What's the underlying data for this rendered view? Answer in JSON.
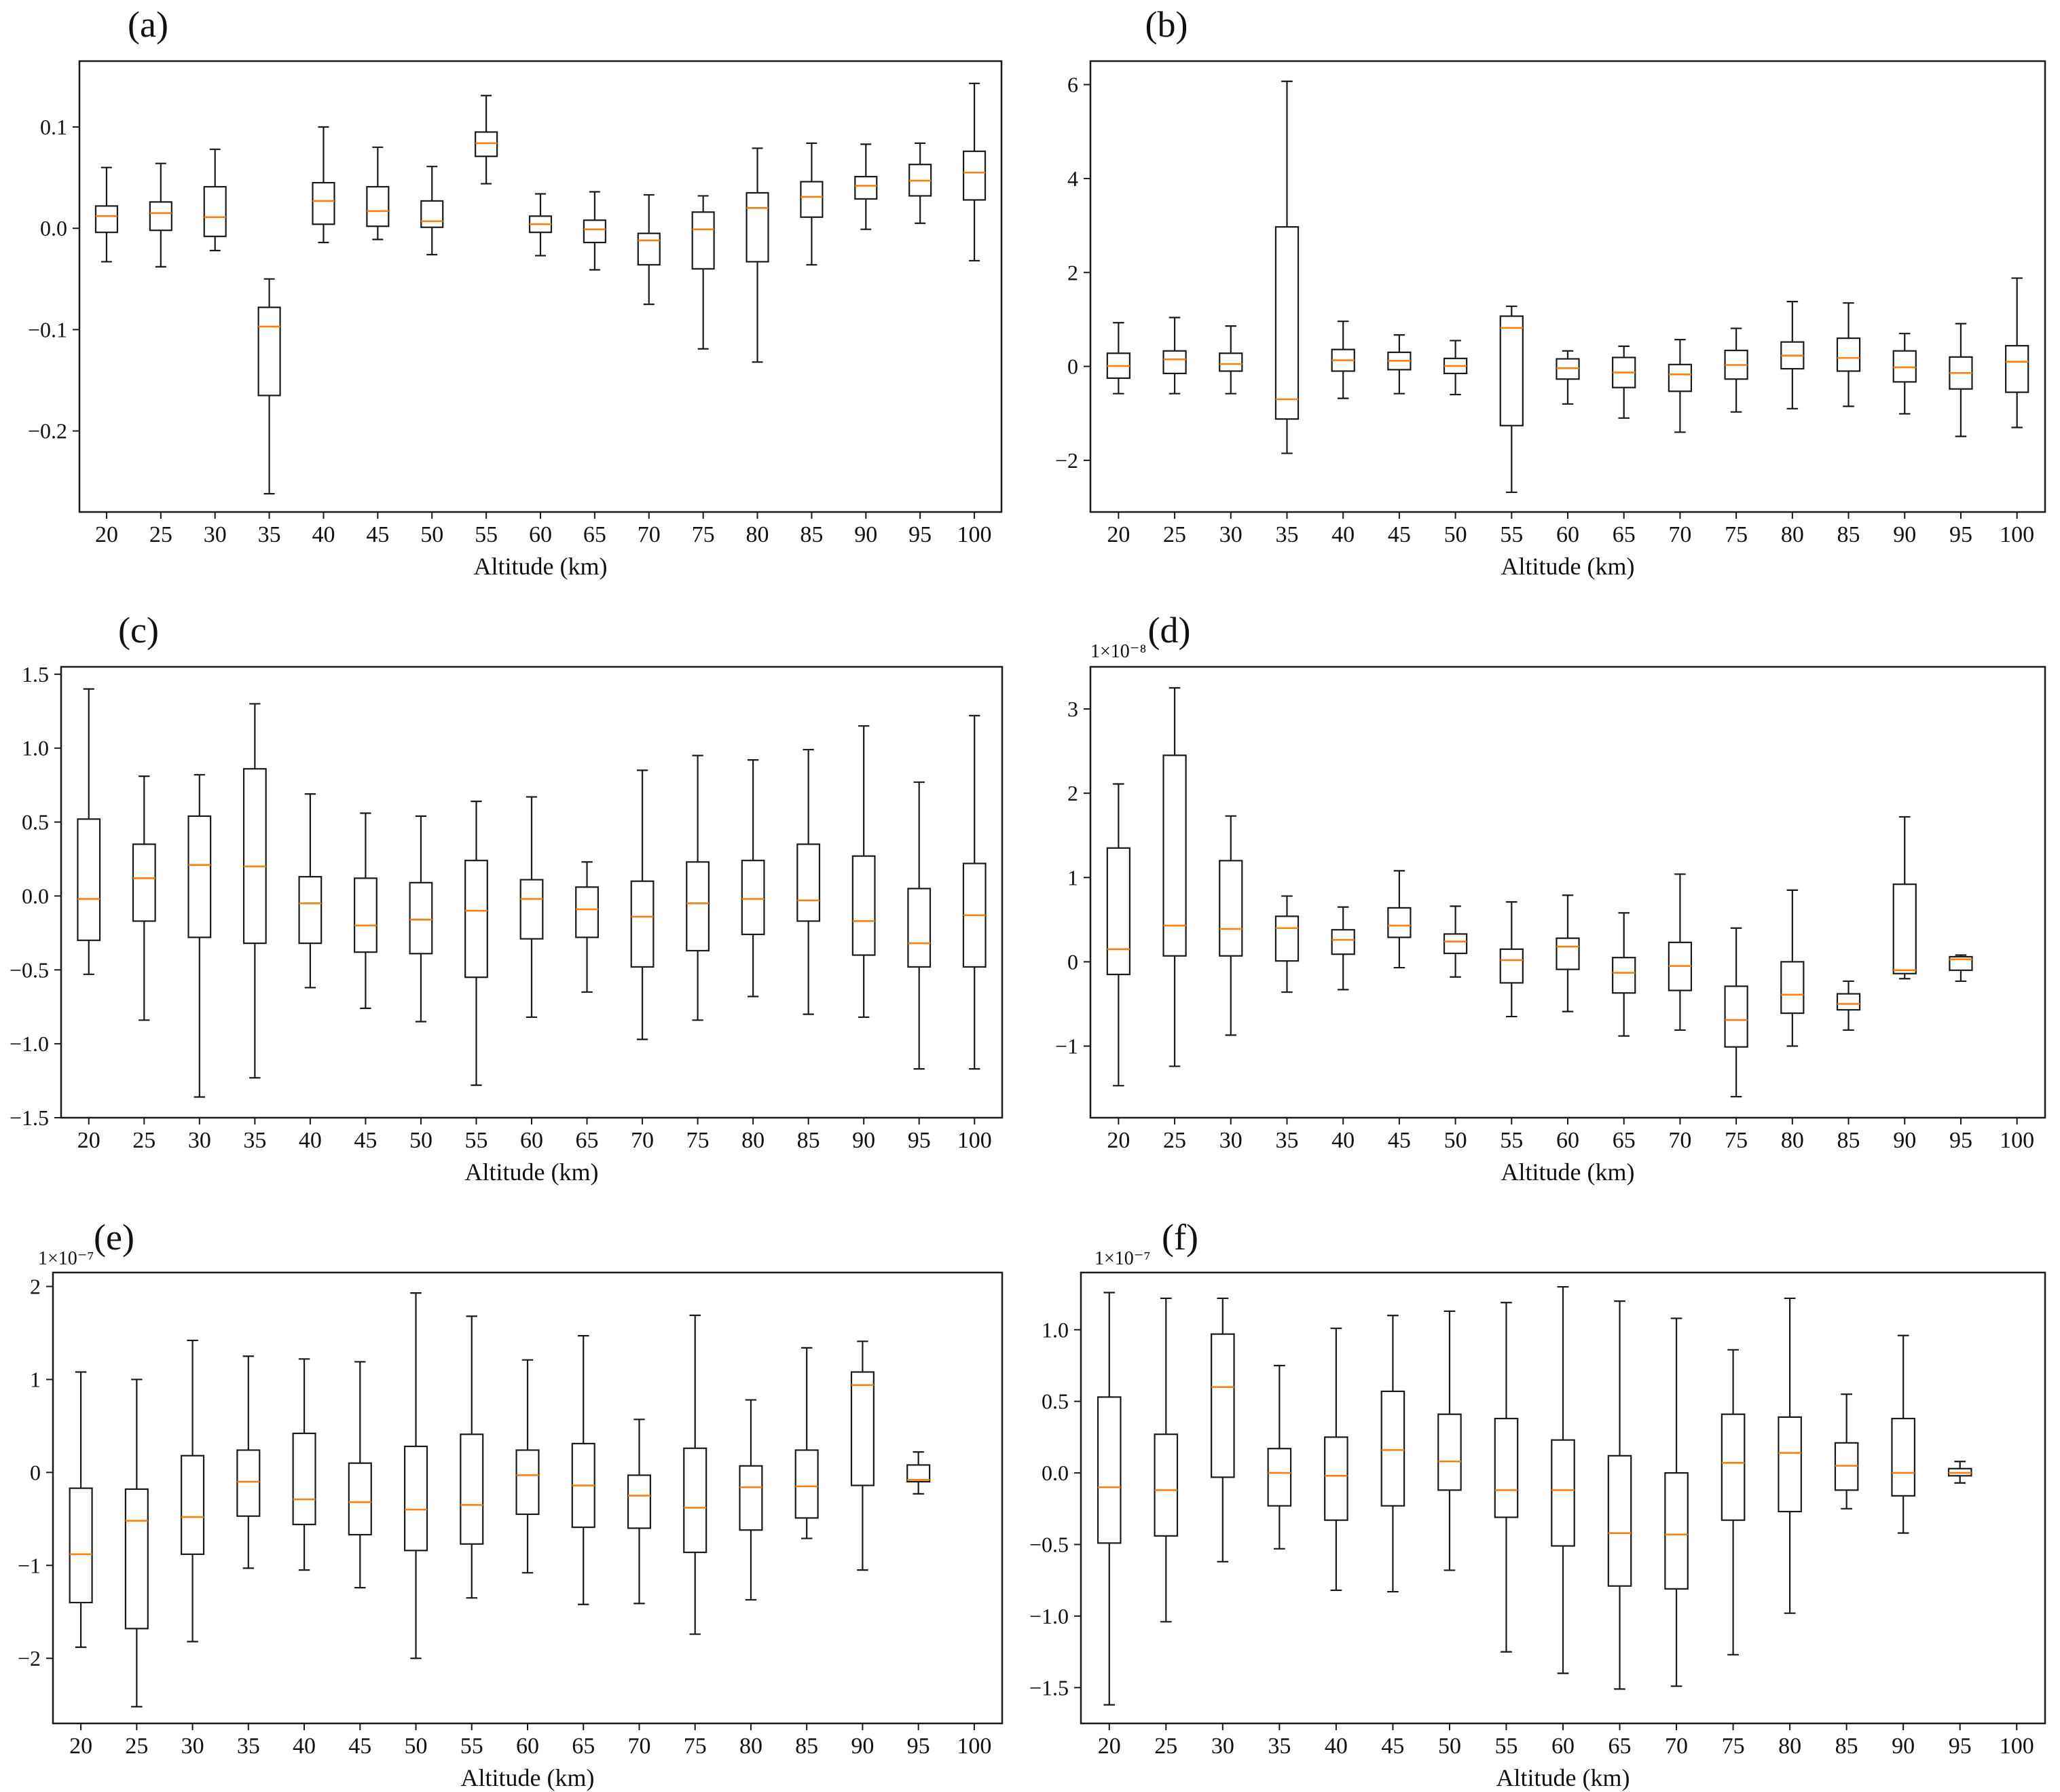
{
  "figure": {
    "colors": {
      "box": "#1a1a1a",
      "median": "#ff7f0e",
      "background": "#ffffff"
    }
  },
  "chart_data": [
    {
      "panel": "(a)",
      "type": "box",
      "xlabel": "Altitude (km)",
      "ylabel": "",
      "scale_label": "",
      "ylim": [
        -0.28,
        0.165
      ],
      "yticks": [
        -0.2,
        -0.1,
        0.0,
        0.1
      ],
      "ytick_labels": [
        "−0.2",
        "−0.1",
        "0.0",
        "0.1"
      ],
      "categories": [
        "20",
        "25",
        "30",
        "35",
        "40",
        "45",
        "50",
        "55",
        "60",
        "65",
        "70",
        "75",
        "80",
        "85",
        "90",
        "95",
        "100"
      ],
      "boxes": [
        {
          "min": -0.033,
          "q1": -0.004,
          "median": 0.012,
          "q3": 0.022,
          "max": 0.06
        },
        {
          "min": -0.038,
          "q1": -0.002,
          "median": 0.015,
          "q3": 0.026,
          "max": 0.064
        },
        {
          "min": -0.022,
          "q1": -0.008,
          "median": 0.011,
          "q3": 0.041,
          "max": 0.078
        },
        {
          "min": -0.262,
          "q1": -0.165,
          "median": -0.097,
          "q3": -0.078,
          "max": -0.05
        },
        {
          "min": -0.014,
          "q1": 0.004,
          "median": 0.027,
          "q3": 0.045,
          "max": 0.1
        },
        {
          "min": -0.011,
          "q1": 0.002,
          "median": 0.017,
          "q3": 0.041,
          "max": 0.08
        },
        {
          "min": -0.026,
          "q1": 0.001,
          "median": 0.007,
          "q3": 0.027,
          "max": 0.061
        },
        {
          "min": 0.044,
          "q1": 0.071,
          "median": 0.084,
          "q3": 0.095,
          "max": 0.131
        },
        {
          "min": -0.027,
          "q1": -0.004,
          "median": 0.004,
          "q3": 0.012,
          "max": 0.034
        },
        {
          "min": -0.041,
          "q1": -0.014,
          "median": -0.001,
          "q3": 0.008,
          "max": 0.036
        },
        {
          "min": -0.075,
          "q1": -0.036,
          "median": -0.012,
          "q3": -0.005,
          "max": 0.033
        },
        {
          "min": -0.119,
          "q1": -0.04,
          "median": -0.001,
          "q3": 0.016,
          "max": 0.032
        },
        {
          "min": -0.132,
          "q1": -0.033,
          "median": 0.02,
          "q3": 0.035,
          "max": 0.079
        },
        {
          "min": -0.036,
          "q1": 0.011,
          "median": 0.031,
          "q3": 0.046,
          "max": 0.084
        },
        {
          "min": -0.001,
          "q1": 0.029,
          "median": 0.042,
          "q3": 0.051,
          "max": 0.083
        },
        {
          "min": 0.005,
          "q1": 0.032,
          "median": 0.047,
          "q3": 0.063,
          "max": 0.084
        },
        {
          "min": -0.032,
          "q1": 0.028,
          "median": 0.055,
          "q3": 0.076,
          "max": 0.143
        }
      ]
    },
    {
      "panel": "(b)",
      "type": "box",
      "xlabel": "Altitude (km)",
      "ylabel": "",
      "scale_label": "",
      "ylim": [
        -3.1,
        6.5
      ],
      "yticks": [
        -2,
        0,
        2,
        4,
        6
      ],
      "ytick_labels": [
        "−2",
        "0",
        "2",
        "4",
        "6"
      ],
      "categories": [
        "20",
        "25",
        "30",
        "35",
        "40",
        "45",
        "50",
        "55",
        "60",
        "65",
        "70",
        "75",
        "80",
        "85",
        "90",
        "95",
        "100"
      ],
      "boxes": [
        {
          "min": -0.58,
          "q1": -0.25,
          "median": 0.01,
          "q3": 0.28,
          "max": 0.93
        },
        {
          "min": -0.58,
          "q1": -0.15,
          "median": 0.15,
          "q3": 0.33,
          "max": 1.04
        },
        {
          "min": -0.58,
          "q1": -0.1,
          "median": 0.05,
          "q3": 0.28,
          "max": 0.86
        },
        {
          "min": -1.85,
          "q1": -1.12,
          "median": -0.7,
          "q3": 2.97,
          "max": 6.07
        },
        {
          "min": -0.68,
          "q1": -0.1,
          "median": 0.13,
          "q3": 0.36,
          "max": 0.96
        },
        {
          "min": -0.58,
          "q1": -0.07,
          "median": 0.12,
          "q3": 0.3,
          "max": 0.67
        },
        {
          "min": -0.6,
          "q1": -0.15,
          "median": 0.01,
          "q3": 0.17,
          "max": 0.55
        },
        {
          "min": -2.68,
          "q1": -1.26,
          "median": 0.82,
          "q3": 1.07,
          "max": 1.28
        },
        {
          "min": -0.8,
          "q1": -0.27,
          "median": -0.04,
          "q3": 0.16,
          "max": 0.33
        },
        {
          "min": -1.1,
          "q1": -0.45,
          "median": -0.13,
          "q3": 0.19,
          "max": 0.43
        },
        {
          "min": -1.4,
          "q1": -0.53,
          "median": -0.17,
          "q3": 0.04,
          "max": 0.57
        },
        {
          "min": -0.97,
          "q1": -0.27,
          "median": 0.03,
          "q3": 0.34,
          "max": 0.81
        },
        {
          "min": -0.9,
          "q1": -0.05,
          "median": 0.23,
          "q3": 0.52,
          "max": 1.38
        },
        {
          "min": -0.85,
          "q1": -0.1,
          "median": 0.18,
          "q3": 0.6,
          "max": 1.35
        },
        {
          "min": -1.01,
          "q1": -0.33,
          "median": -0.02,
          "q3": 0.33,
          "max": 0.7
        },
        {
          "min": -1.49,
          "q1": -0.48,
          "median": -0.14,
          "q3": 0.2,
          "max": 0.91
        },
        {
          "min": -1.3,
          "q1": -0.55,
          "median": 0.1,
          "q3": 0.44,
          "max": 1.88
        }
      ]
    },
    {
      "panel": "(c)",
      "type": "box",
      "xlabel": "Altitude (km)",
      "ylabel": "",
      "scale_label": "",
      "ylim": [
        -1.5,
        1.55
      ],
      "yticks": [
        -1.5,
        -1.0,
        -0.5,
        0.0,
        0.5,
        1.0,
        1.5
      ],
      "ytick_labels": [
        "−1.5",
        "−1.0",
        "−0.5",
        "0.0",
        "0.5",
        "1.0",
        "1.5"
      ],
      "categories": [
        "20",
        "25",
        "30",
        "35",
        "40",
        "45",
        "50",
        "55",
        "60",
        "65",
        "70",
        "75",
        "80",
        "85",
        "90",
        "95",
        "100"
      ],
      "boxes": [
        {
          "min": -0.53,
          "q1": -0.3,
          "median": -0.02,
          "q3": 0.52,
          "max": 1.4
        },
        {
          "min": -0.84,
          "q1": -0.17,
          "median": 0.12,
          "q3": 0.35,
          "max": 0.81
        },
        {
          "min": -1.36,
          "q1": -0.28,
          "median": 0.21,
          "q3": 0.54,
          "max": 0.82
        },
        {
          "min": -1.23,
          "q1": -0.32,
          "median": 0.2,
          "q3": 0.86,
          "max": 1.3
        },
        {
          "min": -0.62,
          "q1": -0.32,
          "median": -0.05,
          "q3": 0.13,
          "max": 0.69
        },
        {
          "min": -0.76,
          "q1": -0.38,
          "median": -0.2,
          "q3": 0.12,
          "max": 0.56
        },
        {
          "min": -0.85,
          "q1": -0.39,
          "median": -0.16,
          "q3": 0.09,
          "max": 0.54
        },
        {
          "min": -1.28,
          "q1": -0.55,
          "median": -0.1,
          "q3": 0.24,
          "max": 0.64
        },
        {
          "min": -0.82,
          "q1": -0.29,
          "median": -0.02,
          "q3": 0.11,
          "max": 0.67
        },
        {
          "min": -0.65,
          "q1": -0.28,
          "median": -0.09,
          "q3": 0.06,
          "max": 0.23
        },
        {
          "min": -0.97,
          "q1": -0.48,
          "median": -0.14,
          "q3": 0.1,
          "max": 0.85
        },
        {
          "min": -0.84,
          "q1": -0.37,
          "median": -0.05,
          "q3": 0.23,
          "max": 0.95
        },
        {
          "min": -0.68,
          "q1": -0.26,
          "median": -0.02,
          "q3": 0.24,
          "max": 0.92
        },
        {
          "min": -0.8,
          "q1": -0.17,
          "median": -0.03,
          "q3": 0.35,
          "max": 0.99
        },
        {
          "min": -0.82,
          "q1": -0.4,
          "median": -0.17,
          "q3": 0.27,
          "max": 1.15
        },
        {
          "min": -1.17,
          "q1": -0.48,
          "median": -0.32,
          "q3": 0.05,
          "max": 0.77
        },
        {
          "min": -1.17,
          "q1": -0.48,
          "median": -0.13,
          "q3": 0.22,
          "max": 1.22
        }
      ]
    },
    {
      "panel": "(d)",
      "type": "box",
      "xlabel": "Altitude (km)",
      "ylabel": "",
      "scale_label": "1×10⁻⁸",
      "ylim": [
        -1.85,
        3.5
      ],
      "yticks": [
        -1,
        0,
        1,
        2,
        3
      ],
      "ytick_labels": [
        "−1",
        "0",
        "1",
        "2",
        "3"
      ],
      "categories": [
        "20",
        "25",
        "30",
        "35",
        "40",
        "45",
        "50",
        "55",
        "60",
        "65",
        "70",
        "75",
        "80",
        "85",
        "90",
        "95",
        "100"
      ],
      "boxes": [
        {
          "min": -1.47,
          "q1": -0.15,
          "median": 0.15,
          "q3": 1.35,
          "max": 2.11
        },
        {
          "min": -1.24,
          "q1": 0.07,
          "median": 0.43,
          "q3": 2.45,
          "max": 3.25
        },
        {
          "min": -0.87,
          "q1": 0.07,
          "median": 0.39,
          "q3": 1.2,
          "max": 1.73
        },
        {
          "min": -0.36,
          "q1": 0.01,
          "median": 0.4,
          "q3": 0.54,
          "max": 0.78
        },
        {
          "min": -0.33,
          "q1": 0.09,
          "median": 0.26,
          "q3": 0.38,
          "max": 0.65
        },
        {
          "min": -0.07,
          "q1": 0.29,
          "median": 0.43,
          "q3": 0.64,
          "max": 1.08
        },
        {
          "min": -0.18,
          "q1": 0.1,
          "median": 0.24,
          "q3": 0.33,
          "max": 0.66
        },
        {
          "min": -0.65,
          "q1": -0.25,
          "median": 0.02,
          "q3": 0.15,
          "max": 0.71
        },
        {
          "min": -0.59,
          "q1": -0.09,
          "median": 0.18,
          "q3": 0.28,
          "max": 0.79
        },
        {
          "min": -0.88,
          "q1": -0.37,
          "median": -0.13,
          "q3": 0.05,
          "max": 0.58
        },
        {
          "min": -0.81,
          "q1": -0.34,
          "median": -0.05,
          "q3": 0.23,
          "max": 1.04
        },
        {
          "min": -1.6,
          "q1": -1.01,
          "median": -0.69,
          "q3": -0.29,
          "max": 0.4
        },
        {
          "min": -1.0,
          "q1": -0.61,
          "median": -0.39,
          "q3": 0.0,
          "max": 0.85
        },
        {
          "min": -0.81,
          "q1": -0.57,
          "median": -0.5,
          "q3": -0.38,
          "max": -0.23
        },
        {
          "min": -0.2,
          "q1": -0.14,
          "median": -0.1,
          "q3": 0.92,
          "max": 1.72
        },
        {
          "min": -0.23,
          "q1": -0.1,
          "median": 0.03,
          "q3": 0.06,
          "max": 0.08
        },
        null
      ]
    },
    {
      "panel": "(e)",
      "type": "box",
      "xlabel": "Altitude (km)",
      "ylabel": "",
      "scale_label": "1×10⁻⁷",
      "ylim": [
        -2.7,
        2.15
      ],
      "yticks": [
        -2,
        -1,
        0,
        1,
        2
      ],
      "ytick_labels": [
        "−2",
        "−1",
        "0",
        "1",
        "2"
      ],
      "categories": [
        "20",
        "25",
        "30",
        "35",
        "40",
        "45",
        "50",
        "55",
        "60",
        "65",
        "70",
        "75",
        "80",
        "85",
        "90",
        "95",
        "100"
      ],
      "boxes": [
        {
          "min": -1.88,
          "q1": -1.4,
          "median": -0.88,
          "q3": -0.17,
          "max": 1.08
        },
        {
          "min": -2.52,
          "q1": -1.68,
          "median": -0.52,
          "q3": -0.18,
          "max": 1.0
        },
        {
          "min": -1.82,
          "q1": -0.88,
          "median": -0.48,
          "q3": 0.18,
          "max": 1.42
        },
        {
          "min": -1.03,
          "q1": -0.47,
          "median": -0.1,
          "q3": 0.24,
          "max": 1.25
        },
        {
          "min": -1.05,
          "q1": -0.56,
          "median": -0.29,
          "q3": 0.42,
          "max": 1.22
        },
        {
          "min": -1.24,
          "q1": -0.67,
          "median": -0.32,
          "q3": 0.1,
          "max": 1.19
        },
        {
          "min": -2.0,
          "q1": -0.84,
          "median": -0.4,
          "q3": 0.28,
          "max": 1.93
        },
        {
          "min": -1.35,
          "q1": -0.77,
          "median": -0.35,
          "q3": 0.41,
          "max": 1.68
        },
        {
          "min": -1.08,
          "q1": -0.45,
          "median": -0.03,
          "q3": 0.24,
          "max": 1.21
        },
        {
          "min": -1.42,
          "q1": -0.59,
          "median": -0.14,
          "q3": 0.31,
          "max": 1.47
        },
        {
          "min": -1.41,
          "q1": -0.6,
          "median": -0.25,
          "q3": -0.03,
          "max": 0.57
        },
        {
          "min": -1.74,
          "q1": -0.86,
          "median": -0.38,
          "q3": 0.26,
          "max": 1.69
        },
        {
          "min": -1.37,
          "q1": -0.62,
          "median": -0.16,
          "q3": 0.07,
          "max": 0.78
        },
        {
          "min": -0.71,
          "q1": -0.49,
          "median": -0.15,
          "q3": 0.24,
          "max": 1.34
        },
        {
          "min": -1.05,
          "q1": -0.14,
          "median": 0.94,
          "q3": 1.08,
          "max": 1.41
        },
        {
          "min": -0.23,
          "q1": -0.1,
          "median": -0.08,
          "q3": 0.08,
          "max": 0.22
        },
        null
      ]
    },
    {
      "panel": "(f)",
      "type": "box",
      "xlabel": "Altitude (km)",
      "ylabel": "",
      "scale_label": "1×10⁻⁷",
      "ylim": [
        -1.75,
        1.4
      ],
      "yticks": [
        -1.5,
        -1.0,
        -0.5,
        0.0,
        0.5,
        1.0
      ],
      "ytick_labels": [
        "−1.5",
        "−1.0",
        "−0.5",
        "0.0",
        "0.5",
        "1.0"
      ],
      "categories": [
        "20",
        "25",
        "30",
        "35",
        "40",
        "45",
        "50",
        "55",
        "60",
        "65",
        "70",
        "75",
        "80",
        "85",
        "90",
        "95",
        "100"
      ],
      "boxes": [
        {
          "min": -1.62,
          "q1": -0.49,
          "median": -0.1,
          "q3": 0.53,
          "max": 1.26
        },
        {
          "min": -1.04,
          "q1": -0.44,
          "median": -0.12,
          "q3": 0.27,
          "max": 1.22
        },
        {
          "min": -0.62,
          "q1": -0.03,
          "median": 0.6,
          "q3": 0.97,
          "max": 1.22
        },
        {
          "min": -0.53,
          "q1": -0.23,
          "median": 0.0,
          "q3": 0.17,
          "max": 0.75
        },
        {
          "min": -0.82,
          "q1": -0.33,
          "median": -0.02,
          "q3": 0.25,
          "max": 1.01
        },
        {
          "min": -0.83,
          "q1": -0.23,
          "median": 0.16,
          "q3": 0.57,
          "max": 1.1
        },
        {
          "min": -0.68,
          "q1": -0.12,
          "median": 0.08,
          "q3": 0.41,
          "max": 1.13
        },
        {
          "min": -1.25,
          "q1": -0.31,
          "median": -0.12,
          "q3": 0.38,
          "max": 1.19
        },
        {
          "min": -1.4,
          "q1": -0.51,
          "median": -0.12,
          "q3": 0.23,
          "max": 1.3
        },
        {
          "min": -1.51,
          "q1": -0.79,
          "median": -0.42,
          "q3": 0.12,
          "max": 1.2
        },
        {
          "min": -1.49,
          "q1": -0.81,
          "median": -0.43,
          "q3": 0.0,
          "max": 1.08
        },
        {
          "min": -1.27,
          "q1": -0.33,
          "median": 0.07,
          "q3": 0.41,
          "max": 0.86
        },
        {
          "min": -0.98,
          "q1": -0.27,
          "median": 0.14,
          "q3": 0.39,
          "max": 1.22
        },
        {
          "min": -0.25,
          "q1": -0.12,
          "median": 0.05,
          "q3": 0.21,
          "max": 0.55
        },
        {
          "min": -0.42,
          "q1": -0.16,
          "median": 0.0,
          "q3": 0.38,
          "max": 0.96
        },
        {
          "min": -0.07,
          "q1": -0.02,
          "median": 0.0,
          "q3": 0.03,
          "max": 0.08
        },
        null
      ]
    }
  ]
}
